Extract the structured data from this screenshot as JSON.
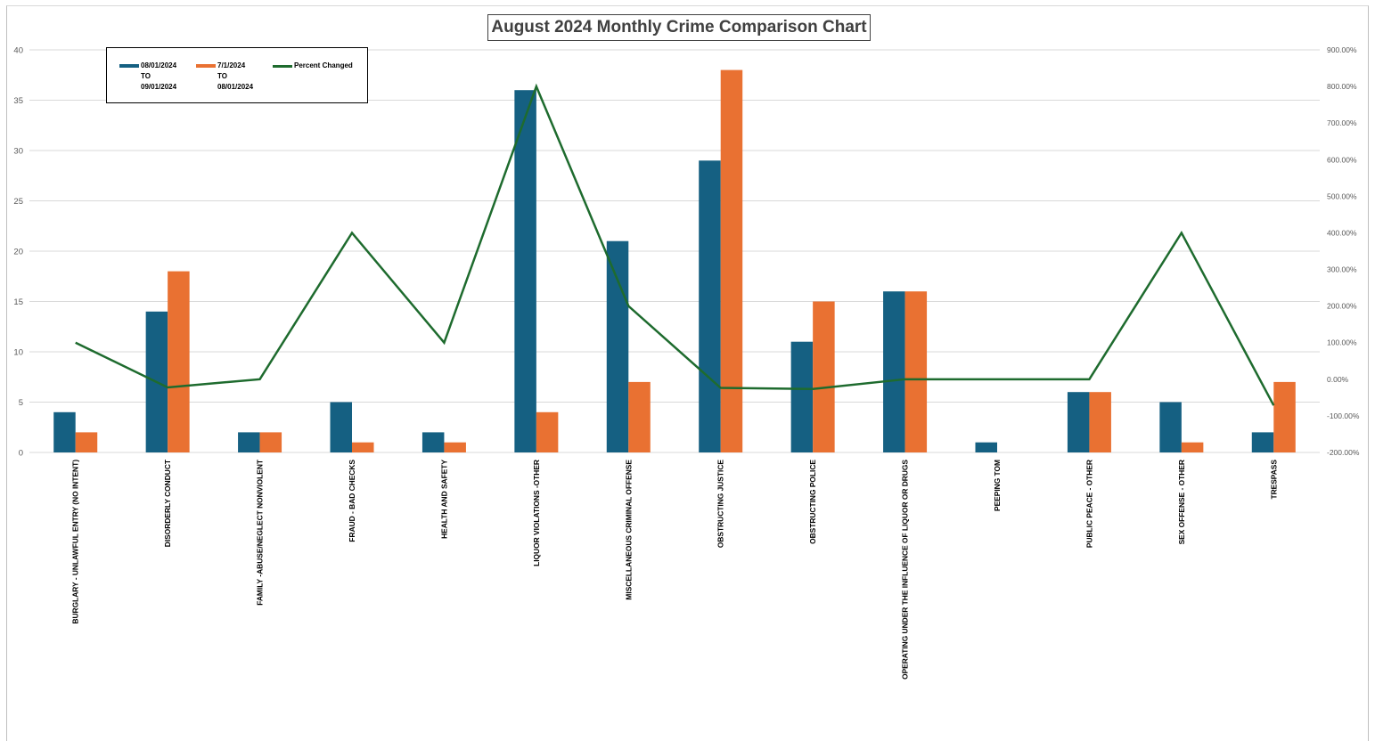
{
  "chart_data": {
    "type": "bar",
    "title": "August 2024 Monthly Crime Comparison Chart",
    "categories": [
      "BURGLARY - UNLAWFUL ENTRY (NO INTENT)",
      "DISORDERLY CONDUCT",
      "FAMILY -ABUSE/NEGLECT NONVIOLENT",
      "FRAUD - BAD CHECKS",
      "HEALTH AND SAFETY",
      "LIQUOR VIOLATIONS -OTHER",
      "MISCELLANEOUS CRIMINAL OFFENSE",
      "OBSTRUCTING JUSTICE",
      "OBSTRUCTING POLICE",
      "OPERATING UNDER THE INFLUENCE OF LIQUOR OR DRUGS",
      "PEEPING TOM",
      "PUBLIC PEACE - OTHER",
      "SEX OFFENSE - OTHER",
      "TRESPASS"
    ],
    "series": [
      {
        "name": "08/01/2024\nTO\n09/01/2024",
        "type": "bar",
        "axis": "left",
        "color": "#156082",
        "values": [
          4,
          14,
          2,
          5,
          2,
          36,
          21,
          29,
          11,
          16,
          1,
          6,
          5,
          2
        ]
      },
      {
        "name": "7/1/2024\nTO\n08/01/2024",
        "type": "bar",
        "axis": "left",
        "color": "#e97132",
        "values": [
          2,
          18,
          2,
          1,
          1,
          4,
          7,
          38,
          15,
          16,
          0,
          6,
          1,
          7
        ]
      },
      {
        "name": "Percent Changed",
        "type": "line",
        "axis": "right",
        "color": "#1e6b2e",
        "values": [
          100,
          -22.22,
          0,
          400,
          100,
          800,
          200,
          -23.68,
          -26.67,
          0,
          0,
          0,
          400,
          -71.43
        ]
      }
    ],
    "ylim": [
      0,
      40
    ],
    "yticks": [
      "0",
      "5",
      "10",
      "15",
      "20",
      "25",
      "30",
      "35",
      "40"
    ],
    "y2lim": [
      -200,
      900
    ],
    "y2ticks": [
      "-200.00%",
      "-100.00%",
      "0.00%",
      "100.00%",
      "200.00%",
      "300.00%",
      "400.00%",
      "500.00%",
      "600.00%",
      "700.00%",
      "800.00%",
      "900.00%"
    ],
    "grid": true,
    "legend_position": "top-left"
  },
  "colors": {
    "bar1": "#156082",
    "bar2": "#e97132",
    "line": "#1e6b2e",
    "grid": "#d9d9d9",
    "axis_text": "#595959"
  }
}
